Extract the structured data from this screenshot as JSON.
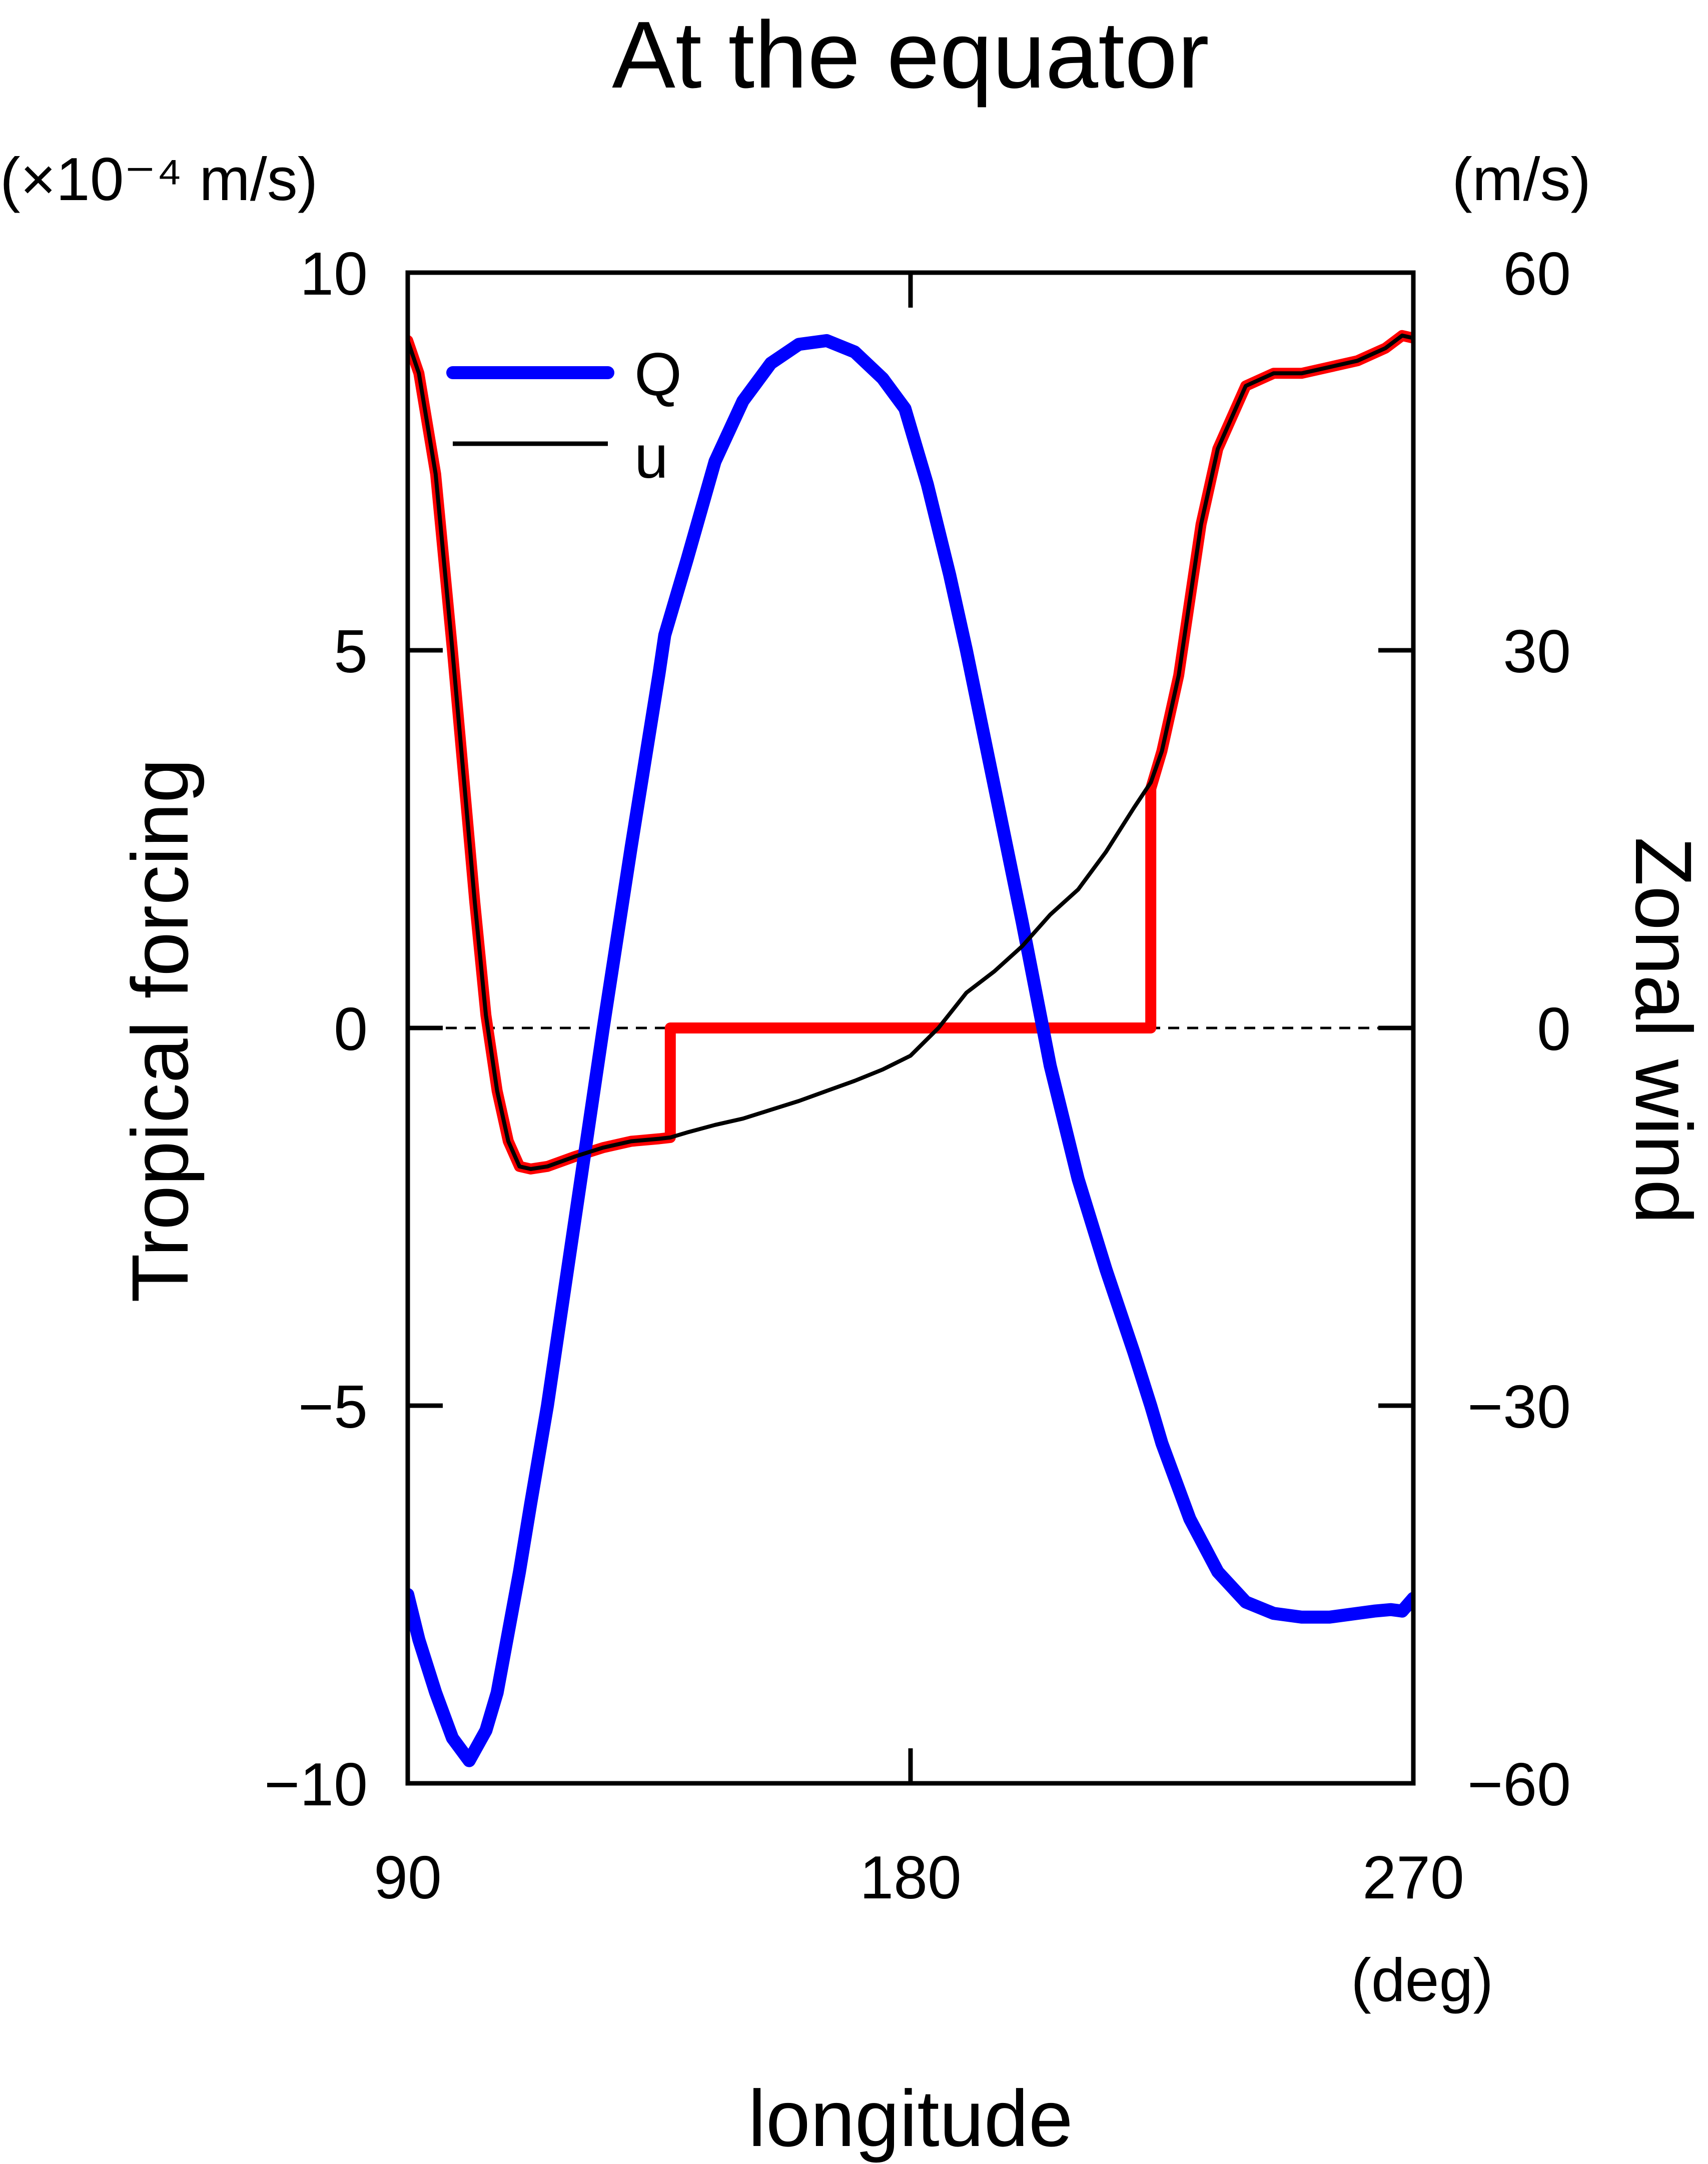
{
  "chart_data": {
    "type": "line",
    "title": "At the equator",
    "xlabel": "longitude",
    "x_unit": "(deg)",
    "ylabel_left": "Tropical forcing",
    "ylabel_left_unit": "(×10⁻⁴ m/s)",
    "ylabel_right": "Zonal wind",
    "ylabel_right_unit": "(m/s)",
    "xlim": [
      90,
      270
    ],
    "ylim_left": [
      -10,
      10
    ],
    "ylim_right": [
      -60,
      60
    ],
    "xticks": [
      90,
      180,
      270
    ],
    "xtick_labels": [
      "90",
      "180",
      "270"
    ],
    "yticks_left": [
      -10,
      -5,
      0,
      5,
      10
    ],
    "ytick_labels_left": [
      "−10",
      "−5",
      "0",
      "5",
      "10"
    ],
    "yticks_right": [
      -60,
      -30,
      0,
      30,
      60
    ],
    "ytick_labels_right": [
      "−60",
      "−30",
      "0",
      "30",
      "60"
    ],
    "zero_line": "dashed",
    "grid": false,
    "legend": {
      "position": "top-left",
      "entries": [
        "Q",
        "u"
      ]
    },
    "series": [
      {
        "name": "Q",
        "axis": "left",
        "color": "#0000ff",
        "x": [
          90,
          92,
          95,
          98,
          101,
          104,
          106,
          108,
          110,
          112,
          115,
          120,
          125,
          130,
          135,
          136,
          140,
          145,
          150,
          155,
          160,
          165,
          170,
          175,
          179,
          183,
          187,
          190,
          195,
          200,
          205,
          210,
          215,
          220,
          223,
          225,
          230,
          235,
          240,
          245,
          250,
          255,
          260,
          263,
          266,
          268,
          270
        ],
        "values": [
          -7.5,
          -8.1,
          -8.8,
          -9.4,
          -9.7,
          -9.3,
          -8.8,
          -8.0,
          -7.2,
          -6.3,
          -5.0,
          -2.5,
          0.0,
          2.4,
          4.7,
          5.2,
          6.2,
          7.5,
          8.3,
          8.8,
          9.05,
          9.1,
          8.95,
          8.6,
          8.2,
          7.2,
          6.0,
          5.0,
          3.2,
          1.4,
          -0.5,
          -2.0,
          -3.2,
          -4.3,
          -5.0,
          -5.5,
          -6.5,
          -7.2,
          -7.6,
          -7.75,
          -7.8,
          -7.8,
          -7.75,
          -7.72,
          -7.7,
          -7.72,
          -7.55
        ]
      },
      {
        "name": "u",
        "axis": "right",
        "color": "#000000",
        "x": [
          90,
          92,
          95,
          98,
          100,
          102,
          104,
          106,
          108,
          110,
          112,
          115,
          120,
          125,
          130,
          135,
          137,
          140,
          145,
          150,
          155,
          160,
          165,
          170,
          175,
          180,
          185,
          190,
          195,
          200,
          205,
          210,
          215,
          220,
          223,
          225,
          228,
          230,
          232,
          235,
          240,
          245,
          250,
          255,
          260,
          265,
          268,
          270
        ],
        "values": [
          54.6,
          52,
          44,
          30,
          20,
          10,
          1,
          -5,
          -9,
          -11,
          -11.2,
          -11,
          -10.2,
          -9.5,
          -9,
          -8.8,
          -8.7,
          -8.3,
          -7.7,
          -7.2,
          -6.5,
          -5.8,
          -5,
          -4.2,
          -3.3,
          -2.2,
          0,
          2.8,
          4.5,
          6.5,
          9,
          11,
          14,
          17.5,
          19.5,
          22,
          28,
          34,
          40,
          46,
          51,
          52,
          52,
          52.5,
          53,
          54,
          55,
          54.8
        ]
      },
      {
        "name": "",
        "axis": "right",
        "color": "#ff0000",
        "x": [
          90,
          92,
          95,
          98,
          100,
          102,
          104,
          106,
          108,
          110,
          112,
          115,
          120,
          125,
          130,
          135,
          137,
          137,
          223,
          223,
          225,
          228,
          230,
          232,
          235,
          240,
          245,
          250,
          255,
          260,
          265,
          268,
          270
        ],
        "values": [
          54.6,
          52,
          44,
          30,
          20,
          10,
          1,
          -5,
          -9,
          -11,
          -11.2,
          -11,
          -10.2,
          -9.5,
          -9,
          -8.8,
          -8.7,
          0,
          0,
          19,
          22,
          28,
          34,
          40,
          46,
          51,
          52,
          52,
          52.5,
          53,
          54,
          55,
          54.8
        ]
      }
    ]
  }
}
